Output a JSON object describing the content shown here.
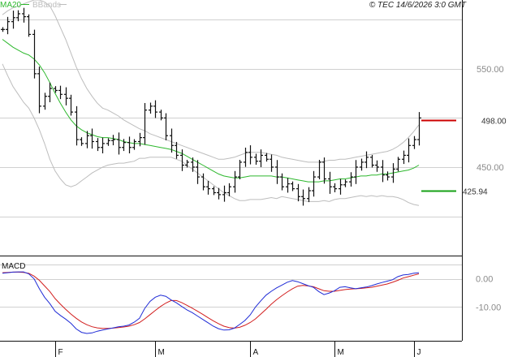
{
  "header": {
    "legend_ma": "MA20",
    "legend_bb": "BBands",
    "copyright": "© TEC 14/6/2026 3:0 GMT"
  },
  "colors": {
    "price_bar": "#111111",
    "ma20": "#2db82d",
    "bbands": "#bdbdbd",
    "grid": "#d0d0d0",
    "resistance": "#cc0000",
    "support": "#16a016",
    "macd_line": "#1f2bd6",
    "signal_line": "#d21f1f"
  },
  "chart_data": [
    {
      "type": "ohlc",
      "title": "",
      "y_ticks": [
        "550.00",
        "450.00"
      ],
      "ylim": [
        360,
        620
      ],
      "annotations": [
        {
          "label": "498.00",
          "value": 498,
          "color": "#cc0000"
        },
        {
          "label": "425.94",
          "value": 425.94,
          "color": "#16a016"
        }
      ],
      "x_ticks": [
        "F",
        "M",
        "A",
        "M",
        "J"
      ],
      "x_tick_index": [
        10,
        29,
        47,
        63,
        78
      ],
      "close": [
        590,
        598,
        602,
        606,
        603,
        585,
        545,
        512,
        522,
        530,
        528,
        524,
        520,
        506,
        478,
        474,
        482,
        476,
        470,
        474,
        477,
        478,
        470,
        475,
        470,
        476,
        480,
        508,
        512,
        506,
        500,
        482,
        472,
        462,
        452,
        455,
        450,
        440,
        430,
        428,
        424,
        422,
        424,
        430,
        440,
        455,
        465,
        460,
        456,
        462,
        458,
        450,
        440,
        430,
        433,
        428,
        420,
        418,
        426,
        440,
        455,
        438,
        430,
        428,
        432,
        435,
        440,
        450,
        455,
        460,
        452,
        450,
        442,
        440,
        448,
        458,
        462,
        472,
        478,
        500
      ],
      "ma20": [
        580,
        576,
        572,
        569,
        566,
        564,
        560,
        554,
        546,
        536,
        525,
        515,
        506,
        498,
        492,
        488,
        485,
        483,
        481,
        480,
        480,
        479,
        478,
        476,
        475,
        474,
        474,
        473,
        472,
        471,
        470,
        469,
        468,
        466,
        464,
        461,
        458,
        455,
        452,
        449,
        446,
        443,
        441,
        440,
        439,
        439,
        440,
        441,
        441,
        441,
        441,
        441,
        440,
        440,
        439,
        438,
        437,
        436,
        435,
        435,
        435,
        436,
        436,
        437,
        438,
        438,
        439,
        440,
        441,
        441,
        442,
        442,
        443,
        443,
        444,
        445,
        446,
        447,
        449,
        452
      ],
      "bb_upper": [
        605,
        609,
        612,
        614,
        616,
        618,
        620,
        620,
        618,
        614,
        604,
        592,
        580,
        566,
        552,
        540,
        530,
        522,
        515,
        510,
        508,
        505,
        502,
        498,
        495,
        492,
        489,
        487,
        484,
        482,
        480,
        478,
        476,
        474,
        472,
        470,
        468,
        466,
        464,
        462,
        460,
        458,
        458,
        459,
        460,
        462,
        464,
        465,
        465,
        465,
        464,
        463,
        462,
        460,
        459,
        458,
        457,
        456,
        455,
        455,
        455,
        456,
        457,
        457,
        458,
        458,
        459,
        460,
        461,
        462,
        463,
        464,
        465,
        466,
        468,
        471,
        475,
        480,
        486,
        493
      ],
      "bb_lower": [
        555,
        543,
        532,
        524,
        516,
        510,
        500,
        488,
        474,
        458,
        446,
        438,
        432,
        430,
        432,
        436,
        440,
        444,
        447,
        450,
        452,
        453,
        454,
        454,
        455,
        456,
        459,
        459,
        460,
        460,
        460,
        460,
        460,
        458,
        456,
        452,
        448,
        444,
        440,
        436,
        432,
        428,
        424,
        421,
        418,
        416,
        416,
        417,
        417,
        417,
        418,
        419,
        418,
        420,
        419,
        418,
        417,
        416,
        415,
        415,
        415,
        416,
        415,
        417,
        418,
        418,
        419,
        420,
        421,
        420,
        421,
        420,
        421,
        420,
        420,
        419,
        417,
        414,
        412,
        411
      ]
    },
    {
      "type": "line",
      "title": "",
      "legend": "MACD",
      "y_ticks": [
        "0.00",
        "-10.00"
      ],
      "ylim": [
        -22,
        8
      ],
      "x_ticks": [
        "F",
        "M",
        "A",
        "M",
        "J"
      ],
      "series": [
        {
          "color": "#1f2bd6",
          "values": [
            2.0,
            2.2,
            2.4,
            2.5,
            2.5,
            1.8,
            0.0,
            -3.5,
            -6.5,
            -8.8,
            -11.5,
            -13.0,
            -14.3,
            -15.8,
            -17.8,
            -19.0,
            -19.4,
            -19.2,
            -18.6,
            -18.2,
            -17.8,
            -17.4,
            -17.0,
            -16.8,
            -16.4,
            -15.4,
            -14.0,
            -10.5,
            -8.0,
            -6.5,
            -5.8,
            -6.2,
            -7.5,
            -8.5,
            -9.8,
            -11.0,
            -12.0,
            -13.2,
            -14.4,
            -15.6,
            -16.8,
            -17.7,
            -18.2,
            -18.1,
            -17.5,
            -16.2,
            -14.8,
            -12.8,
            -10.0,
            -7.8,
            -5.8,
            -4.4,
            -3.2,
            -2.2,
            -1.2,
            -0.6,
            -1.0,
            -1.7,
            -2.4,
            -3.0,
            -4.5,
            -5.6,
            -5.0,
            -4.2,
            -3.0,
            -2.8,
            -3.2,
            -3.5,
            -3.2,
            -2.9,
            -2.4,
            -1.8,
            -1.3,
            -0.8,
            -0.3,
            0.8,
            1.4,
            1.6,
            2.0,
            2.2
          ]
        },
        {
          "color": "#d21f1f",
          "values": [
            2.2,
            2.3,
            2.4,
            2.4,
            2.3,
            2.0,
            1.0,
            -0.5,
            -2.5,
            -4.5,
            -7.0,
            -9.0,
            -10.8,
            -12.5,
            -14.0,
            -15.3,
            -16.3,
            -17.0,
            -17.4,
            -17.6,
            -17.6,
            -17.5,
            -17.3,
            -17.1,
            -16.8,
            -16.3,
            -15.5,
            -14.2,
            -12.7,
            -11.2,
            -9.8,
            -8.6,
            -7.7,
            -7.7,
            -8.4,
            -9.4,
            -10.4,
            -11.5,
            -12.6,
            -13.8,
            -14.9,
            -15.9,
            -16.8,
            -17.3,
            -17.5,
            -17.2,
            -16.5,
            -15.5,
            -14.2,
            -12.5,
            -10.8,
            -9.0,
            -7.4,
            -6.0,
            -4.7,
            -3.5,
            -2.6,
            -2.3,
            -2.5,
            -2.8,
            -3.5,
            -4.2,
            -4.4,
            -4.4,
            -4.1,
            -3.8,
            -3.6,
            -3.5,
            -3.4,
            -3.2,
            -3.0,
            -2.6,
            -2.2,
            -1.8,
            -1.2,
            -0.5,
            0.3,
            0.8,
            1.3,
            1.8
          ]
        }
      ]
    }
  ]
}
